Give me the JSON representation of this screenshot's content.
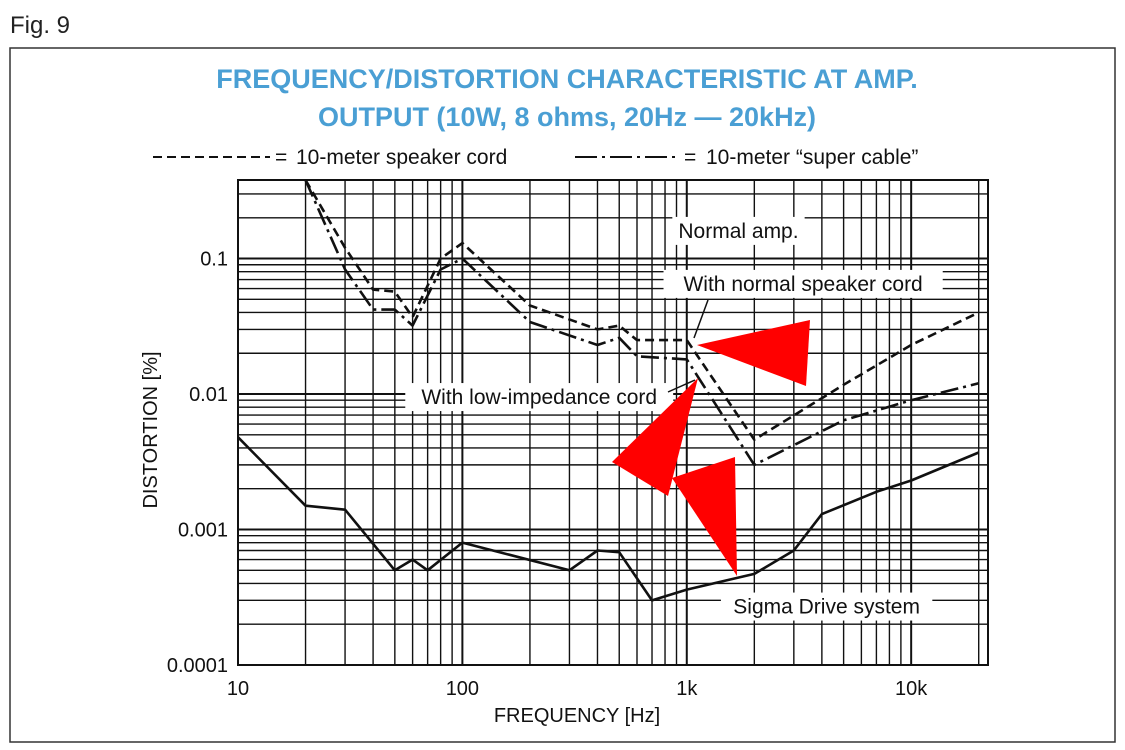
{
  "figure_label": "Fig. 9",
  "chart_data": {
    "type": "line",
    "title": "FREQUENCY/DISTORTION CHARACTERISTIC AT AMP.",
    "title_line2": "OUTPUT (10W, 8 ohms, 20Hz — 20kHz)",
    "xlabel": "FREQUENCY [Hz]",
    "ylabel": "DISTORTION [%]",
    "xscale": "log",
    "yscale": "log",
    "xlim": [
      10,
      22000
    ],
    "ylim": [
      0.0001,
      0.38
    ],
    "grid": true,
    "legend_placement": "top",
    "legend": [
      {
        "symbol": "------ =",
        "label": "10-meter speaker cord",
        "style": "dashed"
      },
      {
        "symbol": "—-—-— =",
        "label": "10-meter “super cable”",
        "style": "dash-dot"
      }
    ],
    "x_ticks": [
      {
        "value": 10,
        "label": "10"
      },
      {
        "value": 100,
        "label": "100"
      },
      {
        "value": 1000,
        "label": "1k"
      },
      {
        "value": 10000,
        "label": "10k"
      }
    ],
    "y_ticks": [
      {
        "value": 0.1,
        "label": "0.1"
      },
      {
        "value": 0.01,
        "label": "0.01"
      },
      {
        "value": 0.001,
        "label": "0.001"
      },
      {
        "value": 0.0001,
        "label": "0.0001"
      }
    ],
    "series": [
      {
        "style": "dashed",
        "color": "#111111",
        "x": [
          20,
          30,
          40,
          50,
          60,
          80,
          100,
          200,
          400,
          500,
          600,
          1000,
          2000,
          5000,
          10000,
          20000
        ],
        "y": [
          0.38,
          0.12,
          0.059,
          0.057,
          0.037,
          0.1,
          0.13,
          0.045,
          0.03,
          0.032,
          0.025,
          0.025,
          0.0046,
          0.0117,
          0.023,
          0.04
        ]
      },
      {
        "style": "dash-dot",
        "color": "#111111",
        "x": [
          20,
          30,
          40,
          50,
          60,
          80,
          100,
          200,
          400,
          500,
          600,
          1000,
          2000,
          5000,
          10000,
          20000
        ],
        "y": [
          0.38,
          0.083,
          0.042,
          0.042,
          0.032,
          0.083,
          0.1,
          0.034,
          0.023,
          0.026,
          0.019,
          0.018,
          0.003,
          0.0064,
          0.009,
          0.012
        ]
      },
      {
        "style": "solid",
        "color": "#111111",
        "x": [
          10,
          20,
          30,
          50,
          60,
          70,
          100,
          300,
          400,
          500,
          700,
          1000,
          2000,
          3000,
          4000,
          7000,
          10000,
          20000
        ],
        "y": [
          0.0048,
          0.0015,
          0.0014,
          0.0005,
          0.0006,
          0.0005,
          0.0008,
          0.0005,
          0.0007,
          0.00068,
          0.0003,
          0.00036,
          0.00047,
          0.0007,
          0.0013,
          0.0019,
          0.0023,
          0.0037
        ]
      }
    ],
    "annotations": [
      {
        "text": "Normal amp.",
        "x": 1700,
        "y": 0.16
      },
      {
        "text": "With normal speaker cord",
        "x": 3300,
        "y": 0.065
      },
      {
        "text": "With low-impedance cord",
        "x": 220,
        "y": 0.0095
      },
      {
        "text": "Sigma Drive system",
        "x": 4200,
        "y": 0.00027
      }
    ],
    "overlay_marker_color": "#ff0000"
  }
}
